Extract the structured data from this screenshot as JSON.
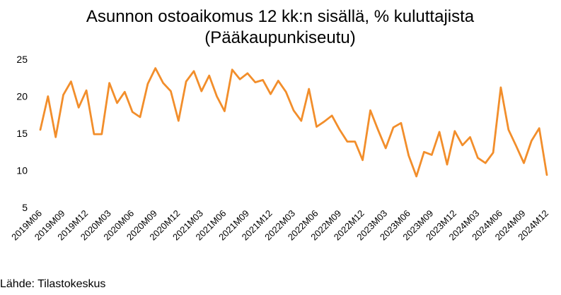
{
  "source_note": "Lähde: Tilastokeskus",
  "chart_data": {
    "type": "line",
    "title": "Asunnon ostoaikomus 12 kk:n sisällä, % kuluttajista",
    "subtitle": "(Pääkaupunkiseutu)",
    "xlabel": "",
    "ylabel": "",
    "ylim": [
      5,
      25
    ],
    "yticks": [
      5,
      10,
      15,
      20,
      25
    ],
    "grid": false,
    "line_color": "#F28E2B",
    "x": [
      "2019M06",
      "2019M07",
      "2019M08",
      "2019M09",
      "2019M10",
      "2019M11",
      "2019M12",
      "2020M01",
      "2020M02",
      "2020M03",
      "2020M04",
      "2020M05",
      "2020M06",
      "2020M07",
      "2020M08",
      "2020M09",
      "2020M10",
      "2020M11",
      "2020M12",
      "2021M01",
      "2021M02",
      "2021M03",
      "2021M04",
      "2021M05",
      "2021M06",
      "2021M07",
      "2021M08",
      "2021M09",
      "2021M10",
      "2021M11",
      "2021M12",
      "2022M01",
      "2022M02",
      "2022M03",
      "2022M04",
      "2022M05",
      "2022M06",
      "2022M07",
      "2022M08",
      "2022M09",
      "2022M10",
      "2022M11",
      "2022M12",
      "2023M01",
      "2023M02",
      "2023M03",
      "2023M04",
      "2023M05",
      "2023M06",
      "2023M07",
      "2023M08",
      "2023M09",
      "2023M10",
      "2023M11",
      "2023M12",
      "2024M01",
      "2024M02",
      "2024M03",
      "2024M04",
      "2024M05",
      "2024M06",
      "2024M07",
      "2024M08",
      "2024M09",
      "2024M10",
      "2024M11",
      "2024M12"
    ],
    "x_tick_labels": [
      "2019M06",
      "2019M09",
      "2019M12",
      "2020M03",
      "2020M06",
      "2020M09",
      "2020M12",
      "2021M03",
      "2021M06",
      "2021M09",
      "2021M12",
      "2022M03",
      "2022M06",
      "2022M09",
      "2022M12",
      "2023M03",
      "2023M06",
      "2023M09",
      "2023M12",
      "2024M03",
      "2024M06",
      "2024M09",
      "2024M12"
    ],
    "series": [
      {
        "values": [
          15.5,
          20.0,
          14.5,
          20.2,
          22.0,
          18.5,
          20.8,
          14.9,
          14.9,
          21.8,
          19.1,
          20.6,
          17.9,
          17.2,
          21.7,
          23.8,
          21.8,
          20.7,
          16.7,
          22.0,
          23.4,
          20.7,
          22.8,
          20.0,
          18.0,
          23.6,
          22.3,
          23.1,
          21.9,
          22.2,
          20.3,
          22.1,
          20.6,
          18.1,
          16.7,
          21.0,
          15.9,
          16.6,
          17.4,
          15.5,
          13.9,
          13.9,
          11.4,
          18.1,
          15.5,
          13.0,
          15.8,
          16.4,
          12.0,
          9.2,
          12.5,
          12.1,
          15.2,
          10.8,
          15.3,
          13.4,
          14.5,
          11.7,
          11.0,
          12.4,
          21.2,
          15.5,
          13.3,
          11.0,
          14.0,
          15.7,
          9.4
        ]
      }
    ]
  }
}
